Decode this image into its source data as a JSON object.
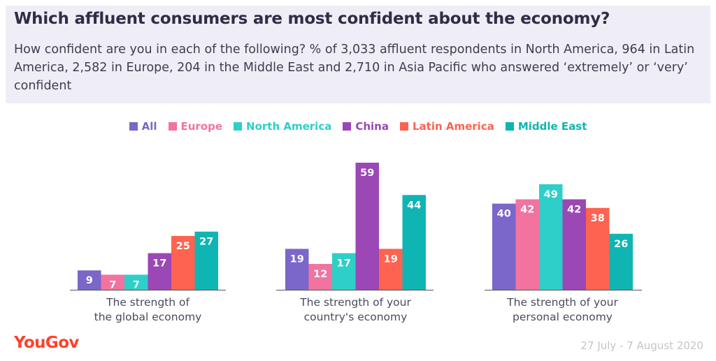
{
  "header": {
    "title": "Which affluent consumers are most confident about the economy?",
    "subtitle": "How confident are you in each of the following? % of 3,033 affluent respondents in North America, 964 in Latin America, 2,582 in Europe, 204 in the Middle East and 2,710 in Asia Pacific who answered ‘extremely’ or ‘very’ confident"
  },
  "footer": {
    "brand": "YouGov",
    "date_range": "27 July - 7 August 2020"
  },
  "chart_data": {
    "type": "bar",
    "title": "Which affluent consumers are most confident about the economy?",
    "subtitle": "How confident are you in each of the following? % of 3,033 affluent respondents in North America, 964 in Latin America, 2,582 in Europe, 204 in the Middle East and 2,710 in Asia Pacific who answered ‘extremely’ or ‘very’ confident",
    "categories": [
      [
        "The strength of",
        "the global economy"
      ],
      [
        "The strength of your",
        "country's economy"
      ],
      [
        "The strength of your",
        "personal economy"
      ]
    ],
    "series": [
      {
        "name": "All",
        "color": "#7b66c9",
        "values": [
          9,
          19,
          40
        ]
      },
      {
        "name": "Europe",
        "color": "#f2739f",
        "values": [
          7,
          12,
          42
        ]
      },
      {
        "name": "North America",
        "color": "#2ecfc9",
        "values": [
          7,
          17,
          49
        ]
      },
      {
        "name": "China",
        "color": "#9b47b5",
        "values": [
          17,
          59,
          42
        ]
      },
      {
        "name": "Latin America",
        "color": "#fd6350",
        "values": [
          25,
          19,
          38
        ]
      },
      {
        "name": "Middle East",
        "color": "#0fb5b3",
        "values": [
          27,
          44,
          26
        ]
      }
    ],
    "ylim": [
      0,
      59
    ],
    "grid": false,
    "legend_position": "top-center",
    "data_labels": true,
    "data_label_color": "#ffffff",
    "axis_color": "#555555",
    "category_label_color": "#4a4a5e"
  }
}
